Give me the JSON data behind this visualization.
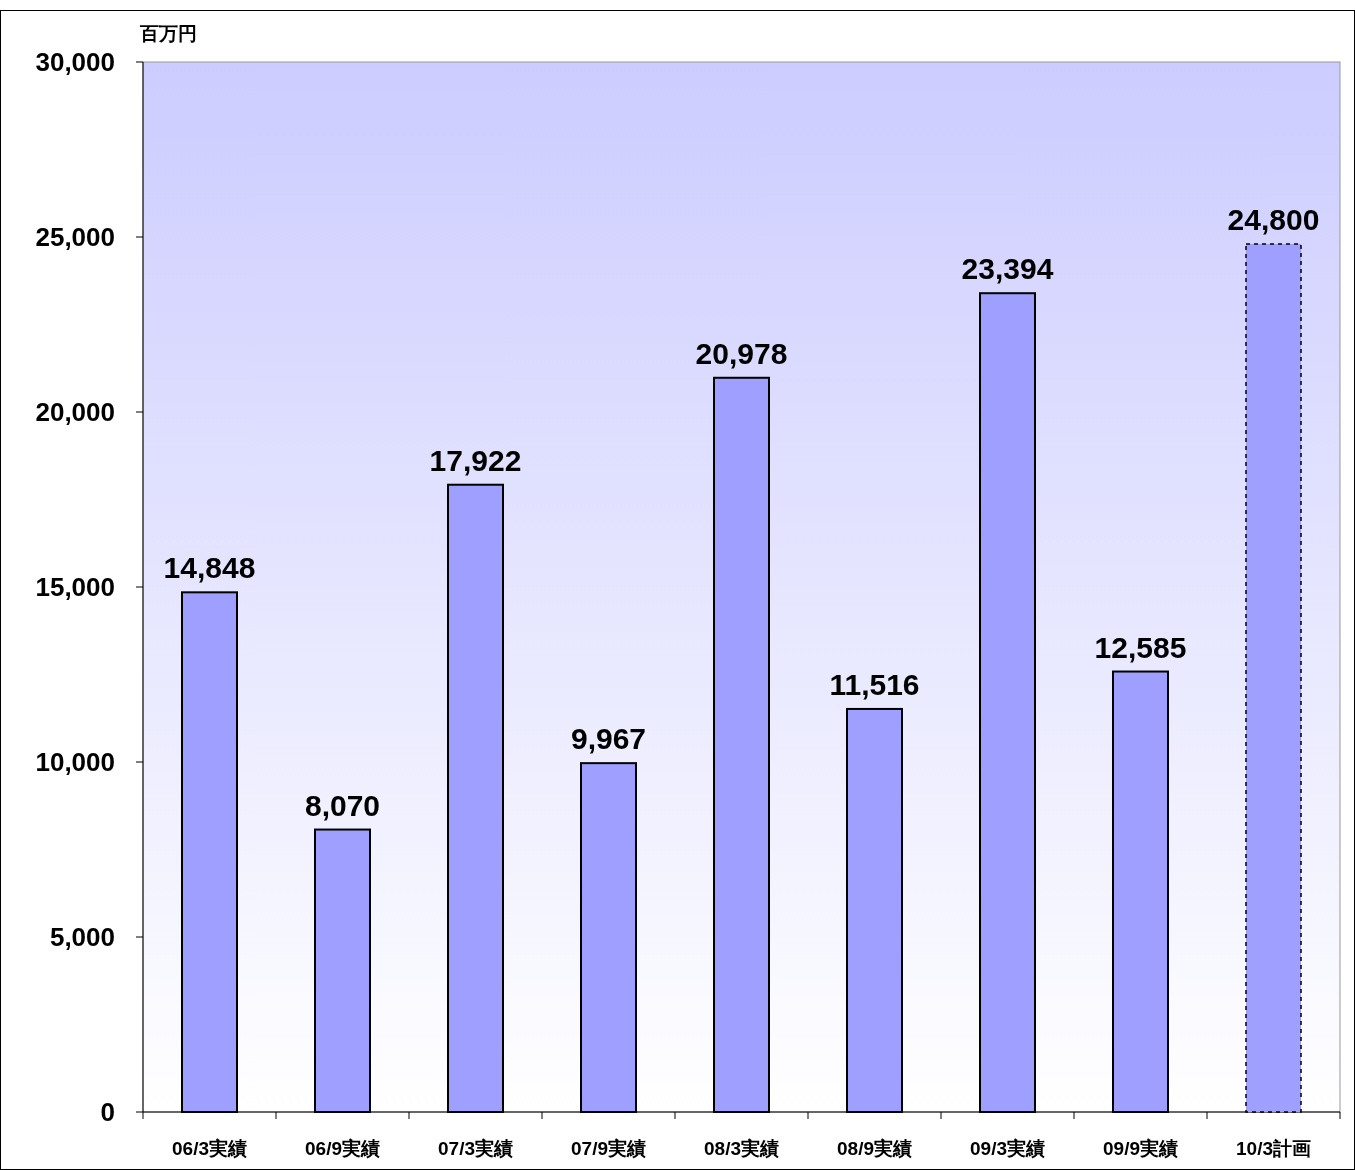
{
  "chart_data": {
    "type": "bar",
    "ylabel": "百万円",
    "categories": [
      "06/3実績",
      "06/9実績",
      "07/3実績",
      "07/9実績",
      "08/3実績",
      "08/9実績",
      "09/3実績",
      "09/9実績",
      "10/3計画"
    ],
    "series": [
      {
        "color": "#9f9fff",
        "values": [
          14848,
          8070,
          17922,
          9967,
          20978,
          11516,
          23394,
          12585,
          null
        ],
        "value_labels": [
          "14,848",
          "8,070",
          "17,922",
          "9,967",
          "20,978",
          "11,516",
          "23,394",
          "12,585",
          null
        ]
      },
      {
        "color": "#9f9fff",
        "line_style": "dashed",
        "values": [
          null,
          null,
          null,
          null,
          null,
          null,
          null,
          null,
          24800
        ],
        "value_labels": [
          null,
          null,
          null,
          null,
          null,
          null,
          null,
          null,
          "24,800"
        ]
      }
    ],
    "ylim": [
      0,
      30000
    ],
    "yticks": [
      {
        "value": 0,
        "label": "0"
      },
      {
        "value": 5000,
        "label": "5,000"
      },
      {
        "value": 10000,
        "label": "10,000"
      },
      {
        "value": 15000,
        "label": "15,000"
      },
      {
        "value": 20000,
        "label": "20,000"
      },
      {
        "value": 25000,
        "label": "25,000"
      },
      {
        "value": 30000,
        "label": "30,000"
      }
    ],
    "grid": false
  }
}
